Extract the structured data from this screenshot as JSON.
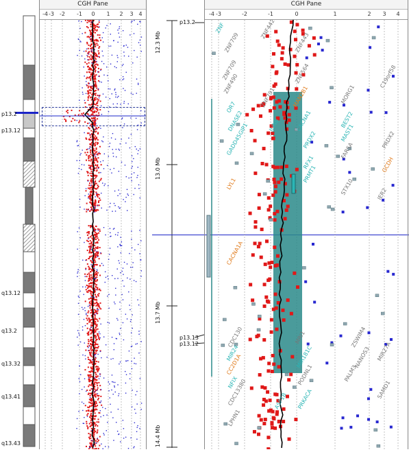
{
  "left_pane": {
    "title": "CGH Pane",
    "ticks": [
      "-4",
      "-3",
      "-2",
      "-1",
      "0",
      "1",
      "2",
      "3",
      "4"
    ],
    "band_labels": [
      "p13.2",
      "p13.12",
      "q13.12",
      "q13.2",
      "q13.32",
      "q13.41",
      "q13.43"
    ],
    "mb_labels": [
      "12.3 Mb",
      "13.0 Mb",
      "13.7 Mb",
      "14.4 Mb"
    ]
  },
  "right_pane": {
    "title": "CGH Pane",
    "ticks": [
      "-4",
      "-3",
      "-2",
      "-1",
      "0",
      "1",
      "2",
      "3",
      "4"
    ],
    "band_labels": [
      "p13.2",
      "p13.13",
      "p13.12"
    ],
    "genes": [
      {
        "name": "ZNF",
        "color": "#2bb5b5"
      },
      {
        "name": "ZNF709",
        "color": "#777777"
      },
      {
        "name": "ZNF709",
        "color": "#777777"
      },
      {
        "name": "ZNF490",
        "color": "#777777"
      },
      {
        "name": "OR7",
        "color": "#2bb5b5"
      },
      {
        "name": "DNASE2",
        "color": "#2bb5b5"
      },
      {
        "name": "GADD45GIP1",
        "color": "#2bb5b5"
      },
      {
        "name": "LYL1",
        "color": "#e07a1a"
      },
      {
        "name": "CACNA1A",
        "color": "#e07a1a"
      },
      {
        "name": "ZNF442",
        "color": "#777777"
      },
      {
        "name": "ZNF791",
        "color": "#777777"
      },
      {
        "name": "JUNB",
        "color": "#2bb5b5"
      },
      {
        "name": "ZNF443",
        "color": "#777777"
      },
      {
        "name": "ZNF564",
        "color": "#777777"
      },
      {
        "name": "MAN2B1",
        "color": "#e07a1a"
      },
      {
        "name": "CACNA1",
        "color": "#2bb5b5"
      },
      {
        "name": "PRDX2",
        "color": "#2bb5b5"
      },
      {
        "name": "RFX1",
        "color": "#2bb5b5"
      },
      {
        "name": "PRMT1",
        "color": "#2bb5b5"
      },
      {
        "name": "MORG1",
        "color": "#777777"
      },
      {
        "name": "BEST2",
        "color": "#2bb5b5"
      },
      {
        "name": "MAST1",
        "color": "#2bb5b5"
      },
      {
        "name": "FARSA",
        "color": "#777777"
      },
      {
        "name": "STX10",
        "color": "#777777"
      },
      {
        "name": "C19orf58",
        "color": "#777777"
      },
      {
        "name": "PRDX2",
        "color": "#777777"
      },
      {
        "name": "GCDH",
        "color": "#e07a1a"
      },
      {
        "name": "IER2",
        "color": "#777777"
      },
      {
        "name": "CDC130",
        "color": "#777777"
      },
      {
        "name": "MIR24",
        "color": "#2bb5b5"
      },
      {
        "name": "CC2D1A",
        "color": "#e07a1a"
      },
      {
        "name": "NFIX",
        "color": "#2bb5b5"
      },
      {
        "name": "CDC13380",
        "color": "#777777"
      },
      {
        "name": "LPHN1",
        "color": "#777777"
      },
      {
        "name": "MRI1",
        "color": "#777777"
      },
      {
        "name": "MIR181C",
        "color": "#2bb5b5"
      },
      {
        "name": "PODNL1",
        "color": "#777777"
      },
      {
        "name": "ASF1B",
        "color": "#2bb5b5"
      },
      {
        "name": "PALM3",
        "color": "#777777"
      },
      {
        "name": "PRKACA",
        "color": "#2bb5b5"
      },
      {
        "name": "ZSWIM4",
        "color": "#777777"
      },
      {
        "name": "NANOS3",
        "color": "#777777"
      },
      {
        "name": "MIR27A",
        "color": "#777777"
      },
      {
        "name": "SAMD1",
        "color": "#777777"
      }
    ]
  },
  "colors": {
    "dot_red": "#e01818",
    "dot_blue": "#2828d0",
    "highlight": "#2a8a8a",
    "cursor_line": "#1b24c8",
    "gene_teal": "#2bb5b5",
    "gene_orange": "#e07a1a",
    "gene_gray": "#777777"
  }
}
